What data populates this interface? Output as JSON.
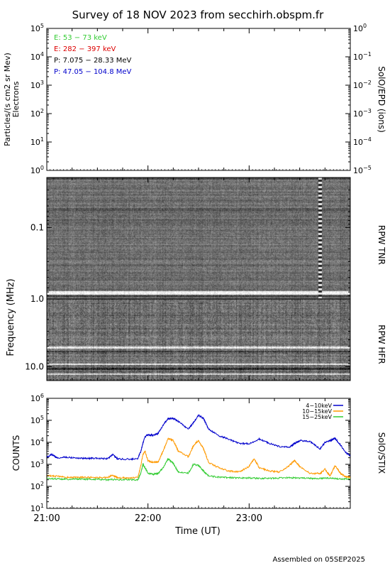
{
  "page": {
    "title": "Survey of 18 NOV 2023 from secchirh.obspm.fr",
    "footer": "Assembled on 05SEP2025"
  },
  "chart_data": [
    {
      "id": "epd",
      "type": "line",
      "ylabel": "Particles/(s cm2 sr Mev)",
      "ylabel2": "Electrons",
      "right_label": "SolO/EPD (ions)",
      "yscale": "log",
      "ylim": [
        1,
        100000
      ],
      "yticks": [
        {
          "v": 1,
          "m": "10",
          "e": "0"
        },
        {
          "v": 10,
          "m": "10",
          "e": "1"
        },
        {
          "v": 100,
          "m": "10",
          "e": "2"
        },
        {
          "v": 1000,
          "m": "10",
          "e": "3"
        },
        {
          "v": 10000,
          "m": "10",
          "e": "4"
        },
        {
          "v": 100000,
          "m": "10",
          "e": "5"
        }
      ],
      "y2scale": "log",
      "y2lim": [
        1e-05,
        1
      ],
      "y2ticks": [
        {
          "v": 1e-05,
          "m": "10",
          "e": "−5"
        },
        {
          "v": 0.0001,
          "m": "10",
          "e": "−4"
        },
        {
          "v": 0.001,
          "m": "10",
          "e": "−3"
        },
        {
          "v": 0.01,
          "m": "10",
          "e": "−2"
        },
        {
          "v": 0.1,
          "m": "10",
          "e": "−1"
        },
        {
          "v": 1,
          "m": "10",
          "e": "0"
        }
      ],
      "legend_placement": "top-left",
      "legend": [
        {
          "label": "E: 53 − 73 keV",
          "color": "#33cc33"
        },
        {
          "label": "E: 282 − 397 keV",
          "color": "#dd0000"
        },
        {
          "label": "P: 7.075 − 28.33 MeV",
          "color": "#000000"
        },
        {
          "label": "P: 47.05 − 104.8 MeV",
          "color": "#0000cc"
        }
      ],
      "series": []
    },
    {
      "id": "tnr",
      "type": "heatmap",
      "ylabel": "Frequency (MHz)",
      "right_label": "RPW TNR",
      "yscale": "log",
      "ylim": [
        0.02,
        1.0
      ],
      "ytick_labels": [
        {
          "v": 0.1,
          "label": "0.1"
        },
        {
          "v": 1.0,
          "label": "1.0"
        }
      ],
      "colormap": "grayscale"
    },
    {
      "id": "hfr",
      "type": "heatmap",
      "right_label": "RPW HFR",
      "yscale": "log",
      "ylim": [
        1.0,
        16.0
      ],
      "ytick_labels": [
        {
          "v": 10.0,
          "label": "10.0"
        }
      ],
      "colormap": "grayscale"
    },
    {
      "id": "stix",
      "type": "line",
      "ylabel": "COUNTS",
      "right_label": "SolO/STIX",
      "xlabel": "Time (UT)",
      "xlim": [
        21.0,
        24.0
      ],
      "xticks": [
        {
          "v": 21.0,
          "label": "21:00"
        },
        {
          "v": 22.0,
          "label": "22:00"
        },
        {
          "v": 23.0,
          "label": "23:00"
        }
      ],
      "yscale": "log",
      "ylim": [
        10,
        1000000
      ],
      "yticks": [
        {
          "v": 10,
          "m": "10",
          "e": "1"
        },
        {
          "v": 100,
          "m": "10",
          "e": "2"
        },
        {
          "v": 1000,
          "m": "10",
          "e": "3"
        },
        {
          "v": 10000,
          "m": "10",
          "e": "4"
        },
        {
          "v": 100000,
          "m": "10",
          "e": "5"
        },
        {
          "v": 1000000,
          "m": "10",
          "e": "6"
        }
      ],
      "legend_placement": "top-right",
      "series": [
        {
          "name": "4−10keV",
          "color": "#0000cc",
          "x": [
            21.0,
            21.05,
            21.1,
            21.2,
            21.3,
            21.4,
            21.5,
            21.6,
            21.65,
            21.7,
            21.8,
            21.9,
            21.93,
            21.95,
            21.97,
            22.0,
            22.05,
            22.1,
            22.15,
            22.2,
            22.25,
            22.3,
            22.4,
            22.45,
            22.5,
            22.55,
            22.6,
            22.7,
            22.8,
            22.9,
            23.0,
            23.1,
            23.2,
            23.3,
            23.4,
            23.45,
            23.5,
            23.6,
            23.7,
            23.75,
            23.8,
            23.85,
            23.9,
            23.95,
            24.0
          ],
          "y": [
            2000,
            2800,
            2000,
            2100,
            1900,
            1850,
            1900,
            1800,
            2800,
            1800,
            1700,
            1800,
            4000,
            9000,
            18000,
            22000,
            21000,
            25000,
            60000,
            120000,
            120000,
            90000,
            40000,
            80000,
            170000,
            120000,
            40000,
            20000,
            14000,
            9000,
            8500,
            14000,
            9000,
            6500,
            6000,
            9000,
            12000,
            11000,
            5000,
            10000,
            12000,
            15000,
            8000,
            3500,
            2500
          ]
        },
        {
          "name": "10−15keV",
          "color": "#ff9900",
          "x": [
            21.0,
            21.1,
            21.2,
            21.3,
            21.4,
            21.5,
            21.6,
            21.65,
            21.7,
            21.8,
            21.9,
            21.93,
            21.95,
            21.97,
            22.0,
            22.05,
            22.1,
            22.15,
            22.2,
            22.25,
            22.3,
            22.4,
            22.45,
            22.5,
            22.55,
            22.6,
            22.7,
            22.8,
            22.9,
            23.0,
            23.05,
            23.1,
            23.2,
            23.3,
            23.4,
            23.45,
            23.5,
            23.6,
            23.7,
            23.75,
            23.8,
            23.85,
            23.9,
            23.95,
            24.0
          ],
          "y": [
            300,
            290,
            260,
            250,
            260,
            250,
            250,
            320,
            250,
            240,
            250,
            900,
            2800,
            4000,
            1500,
            1200,
            1300,
            4000,
            15000,
            12000,
            4000,
            2200,
            7000,
            12000,
            5000,
            1200,
            700,
            500,
            450,
            800,
            1800,
            700,
            500,
            450,
            900,
            1500,
            800,
            400,
            380,
            600,
            300,
            900,
            400,
            280,
            260
          ]
        },
        {
          "name": "15−25keV",
          "color": "#33cc33",
          "x": [
            21.0,
            21.1,
            21.2,
            21.3,
            21.4,
            21.5,
            21.6,
            21.7,
            21.8,
            21.9,
            21.93,
            21.95,
            21.97,
            22.0,
            22.05,
            22.1,
            22.15,
            22.2,
            22.25,
            22.3,
            22.4,
            22.45,
            22.5,
            22.55,
            22.6,
            22.7,
            22.8,
            22.9,
            23.0,
            23.1,
            23.2,
            23.3,
            23.4,
            23.5,
            23.6,
            23.7,
            23.8,
            23.9,
            24.0
          ],
          "y": [
            230,
            220,
            210,
            215,
            210,
            210,
            200,
            205,
            200,
            200,
            400,
            1000,
            700,
            400,
            350,
            380,
            700,
            1800,
            1100,
            450,
            400,
            1000,
            900,
            500,
            300,
            260,
            250,
            240,
            240,
            230,
            230,
            240,
            250,
            240,
            230,
            230,
            240,
            220,
            220
          ]
        }
      ]
    }
  ]
}
